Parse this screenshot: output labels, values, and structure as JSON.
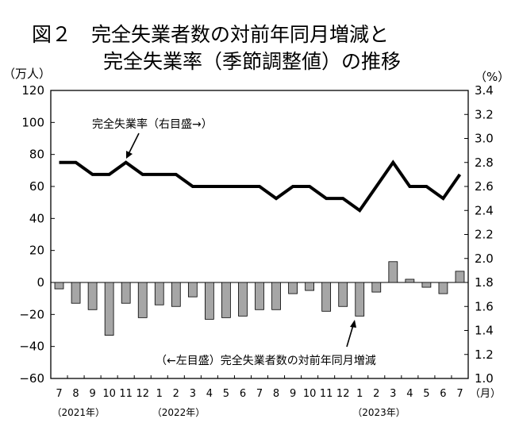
{
  "chart_data": {
    "type": "bar+line",
    "title_line1": "図２　完全失業者数の対前年同月増減と",
    "title_line2": "完全失業率（季節調整値）の推移",
    "left_unit": "（万人）",
    "right_unit": "（%）",
    "month_unit": "（月）",
    "left_ylim": [
      -60,
      120
    ],
    "left_ticks": [
      "120",
      "100",
      "80",
      "60",
      "40",
      "20",
      "0",
      "−20",
      "−40",
      "−60"
    ],
    "right_ylim": [
      1.0,
      3.4
    ],
    "right_ticks": [
      "3.4",
      "3.2",
      "3.0",
      "2.8",
      "2.6",
      "2.4",
      "2.2",
      "2.0",
      "1.8",
      "1.6",
      "1.4",
      "1.2",
      "1.0"
    ],
    "categories": [
      "7",
      "8",
      "9",
      "10",
      "11",
      "12",
      "1",
      "2",
      "3",
      "4",
      "5",
      "6",
      "7",
      "8",
      "9",
      "10",
      "11",
      "12",
      "1",
      "2",
      "3",
      "4",
      "5",
      "6",
      "7"
    ],
    "year_labels": [
      {
        "text": "（2021年）",
        "index": 0
      },
      {
        "text": "（2022年）",
        "index": 6
      },
      {
        "text": "（2023年）",
        "index": 18
      }
    ],
    "series": [
      {
        "name": "（←左目盛）完全失業者数の対前年同月増減",
        "kind": "bar",
        "axis": "left",
        "values": [
          -4,
          -13,
          -17,
          -33,
          -13,
          -22,
          -14,
          -15,
          -9,
          -23,
          -22,
          -21,
          -17,
          -17,
          -7,
          -5,
          -18,
          -15,
          -21,
          -6,
          13,
          2,
          -3,
          -7,
          7
        ]
      },
      {
        "name": "完全失業率（右目盛→）",
        "kind": "line",
        "axis": "right",
        "values": [
          2.8,
          2.8,
          2.7,
          2.7,
          2.8,
          2.7,
          2.7,
          2.7,
          2.6,
          2.6,
          2.6,
          2.6,
          2.6,
          2.5,
          2.6,
          2.6,
          2.5,
          2.5,
          2.4,
          2.6,
          2.8,
          2.6,
          2.6,
          2.5,
          2.7
        ]
      }
    ],
    "colors": {
      "bar_fill": "#a6a6a6",
      "bar_stroke": "#000000",
      "line": "#000000"
    }
  }
}
